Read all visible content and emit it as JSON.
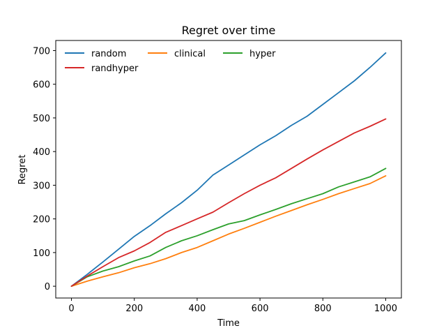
{
  "chart_data": {
    "type": "line",
    "title": "Regret over time",
    "xlabel": "Time",
    "ylabel": "Regret",
    "xlim": [
      -50,
      1050
    ],
    "ylim": [
      -35,
      730
    ],
    "xticks": [
      0,
      200,
      400,
      600,
      800,
      1000
    ],
    "yticks": [
      0,
      100,
      200,
      300,
      400,
      500,
      600,
      700
    ],
    "grid": false,
    "legend": {
      "placement": "upper-left",
      "columns": 3
    },
    "x": [
      0,
      50,
      100,
      150,
      200,
      250,
      300,
      350,
      400,
      450,
      500,
      550,
      600,
      650,
      700,
      750,
      800,
      850,
      900,
      950,
      1000
    ],
    "series": [
      {
        "name": "random",
        "color": "#1f77b4",
        "values": [
          0,
          35,
          72,
          110,
          148,
          180,
          215,
          248,
          285,
          330,
          360,
          390,
          420,
          447,
          478,
          505,
          540,
          575,
          610,
          650,
          693
        ]
      },
      {
        "name": "clinical",
        "color": "#ff7f0e",
        "values": [
          0,
          15,
          28,
          40,
          55,
          67,
          82,
          100,
          115,
          135,
          155,
          172,
          190,
          208,
          225,
          242,
          258,
          275,
          290,
          305,
          328
        ]
      },
      {
        "name": "hyper",
        "color": "#2ca02c",
        "values": [
          0,
          28,
          45,
          58,
          75,
          90,
          115,
          135,
          150,
          168,
          185,
          195,
          212,
          228,
          245,
          260,
          275,
          295,
          310,
          325,
          350
        ]
      },
      {
        "name": "randhyper",
        "color": "#d62728",
        "values": [
          0,
          30,
          58,
          85,
          105,
          130,
          160,
          180,
          200,
          220,
          248,
          275,
          300,
          322,
          350,
          378,
          405,
          430,
          455,
          475,
          497
        ]
      }
    ]
  }
}
